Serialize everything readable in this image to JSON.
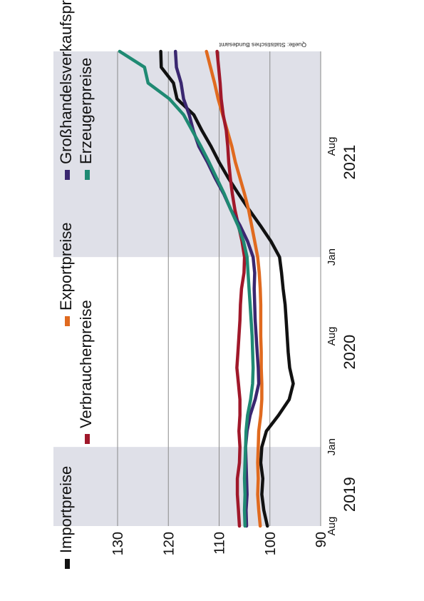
{
  "chart_data": {
    "type": "line",
    "source": "Quelle: Statistisches Bundesamt",
    "yticks": [
      90,
      100,
      110,
      120,
      130
    ],
    "ylim": [
      90,
      130
    ],
    "x_month_ticks": [
      {
        "label": "Aug",
        "month": 0
      },
      {
        "label": "Jan",
        "month": 5
      },
      {
        "label": "Aug",
        "month": 12
      },
      {
        "label": "Jan",
        "month": 17
      },
      {
        "label": "Aug",
        "month": 24
      }
    ],
    "x_year_labels": [
      {
        "label": "2019",
        "month": 2
      },
      {
        "label": "2020",
        "month": 11
      },
      {
        "label": "2021",
        "month": 23
      }
    ],
    "shaded_month_ranges": [
      [
        0,
        5
      ],
      [
        17,
        30
      ]
    ],
    "series": [
      {
        "name": "Importpreise",
        "color": "#111111",
        "points": [
          [
            0,
            100.5
          ],
          [
            1,
            101.2
          ],
          [
            2,
            101.6
          ],
          [
            3,
            101.4
          ],
          [
            4,
            101.8
          ],
          [
            5,
            101.6
          ],
          [
            6,
            100.7
          ],
          [
            7,
            98.3
          ],
          [
            8,
            96.2
          ],
          [
            9,
            95.4
          ],
          [
            10,
            96.1
          ],
          [
            11,
            96.4
          ],
          [
            12,
            96.6
          ],
          [
            13,
            96.8
          ],
          [
            14,
            97.0
          ],
          [
            15,
            97.4
          ],
          [
            16,
            97.7
          ],
          [
            17,
            98.1
          ],
          [
            18,
            99.8
          ],
          [
            19,
            101.9
          ],
          [
            20,
            104.1
          ],
          [
            21,
            106.2
          ],
          [
            22,
            108.2
          ],
          [
            23,
            110.0
          ],
          [
            24,
            111.6
          ],
          [
            25,
            113.4
          ],
          [
            26,
            115.0
          ],
          [
            27,
            118.3
          ],
          [
            28,
            119.0
          ],
          [
            29,
            121.4
          ],
          [
            30,
            121.5
          ]
        ]
      },
      {
        "name": "Exportpreise",
        "color": "#e06a1f",
        "points": [
          [
            0,
            101.9
          ],
          [
            1,
            102.2
          ],
          [
            2,
            102.4
          ],
          [
            3,
            102.3
          ],
          [
            4,
            102.4
          ],
          [
            5,
            102.3
          ],
          [
            6,
            102.2
          ],
          [
            7,
            101.8
          ],
          [
            8,
            101.6
          ],
          [
            9,
            101.6
          ],
          [
            10,
            101.7
          ],
          [
            11,
            101.7
          ],
          [
            12,
            101.8
          ],
          [
            13,
            101.8
          ],
          [
            14,
            101.8
          ],
          [
            15,
            101.9
          ],
          [
            16,
            102.1
          ],
          [
            17,
            102.4
          ],
          [
            18,
            103.0
          ],
          [
            19,
            103.6
          ],
          [
            20,
            104.2
          ],
          [
            21,
            105.0
          ],
          [
            22,
            105.9
          ],
          [
            23,
            106.8
          ],
          [
            24,
            107.5
          ],
          [
            25,
            108.4
          ],
          [
            26,
            109.3
          ],
          [
            27,
            110.2
          ],
          [
            28,
            110.9
          ],
          [
            29,
            111.7
          ],
          [
            30,
            112.5
          ]
        ]
      },
      {
        "name": "Verbraucherpreise",
        "color": "#a0182a",
        "points": [
          [
            0,
            106.0
          ],
          [
            1,
            106.2
          ],
          [
            2,
            106.4
          ],
          [
            3,
            106.4
          ],
          [
            4,
            106.0
          ],
          [
            5,
            105.9
          ],
          [
            6,
            106.1
          ],
          [
            7,
            105.9
          ],
          [
            8,
            105.9
          ],
          [
            9,
            106.2
          ],
          [
            10,
            106.5
          ],
          [
            11,
            106.3
          ],
          [
            12,
            106.1
          ],
          [
            13,
            105.9
          ],
          [
            14,
            105.8
          ],
          [
            15,
            105.6
          ],
          [
            16,
            105.1
          ],
          [
            17,
            105.0
          ],
          [
            18,
            105.5
          ],
          [
            19,
            106.2
          ],
          [
            20,
            106.9
          ],
          [
            21,
            107.4
          ],
          [
            22,
            107.8
          ],
          [
            23,
            108.1
          ],
          [
            24,
            108.3
          ],
          [
            25,
            108.6
          ],
          [
            26,
            109.2
          ],
          [
            27,
            109.6
          ],
          [
            28,
            109.8
          ],
          [
            29,
            110.1
          ],
          [
            30,
            110.4
          ]
        ]
      },
      {
        "name": "Großhandelsverkaufspreise",
        "color": "#3a2770",
        "points": [
          [
            0,
            104.6
          ],
          [
            1,
            104.7
          ],
          [
            2,
            104.5
          ],
          [
            3,
            104.6
          ],
          [
            4,
            104.7
          ],
          [
            5,
            104.8
          ],
          [
            6,
            104.5
          ],
          [
            7,
            103.9
          ],
          [
            8,
            102.9
          ],
          [
            9,
            102.2
          ],
          [
            10,
            102.3
          ],
          [
            11,
            102.5
          ],
          [
            12,
            102.7
          ],
          [
            13,
            102.9
          ],
          [
            14,
            103.0
          ],
          [
            15,
            103.1
          ],
          [
            16,
            103.0
          ],
          [
            17,
            103.3
          ],
          [
            18,
            104.4
          ],
          [
            19,
            105.9
          ],
          [
            20,
            107.7
          ],
          [
            21,
            109.1
          ],
          [
            22,
            110.8
          ],
          [
            23,
            112.3
          ],
          [
            24,
            114.0
          ],
          [
            25,
            115.1
          ],
          [
            26,
            115.9
          ],
          [
            27,
            117.0
          ],
          [
            28,
            117.5
          ],
          [
            29,
            118.4
          ],
          [
            30,
            118.6
          ]
        ]
      },
      {
        "name": "Erzeugerpreise",
        "color": "#1f8a73",
        "points": [
          [
            0,
            104.9
          ],
          [
            1,
            105.0
          ],
          [
            2,
            104.9
          ],
          [
            3,
            105.0
          ],
          [
            4,
            104.9
          ],
          [
            5,
            104.8
          ],
          [
            6,
            104.7
          ],
          [
            7,
            104.4
          ],
          [
            8,
            103.8
          ],
          [
            9,
            103.4
          ],
          [
            10,
            103.3
          ],
          [
            11,
            103.4
          ],
          [
            12,
            103.5
          ],
          [
            13,
            103.7
          ],
          [
            14,
            103.9
          ],
          [
            15,
            104.1
          ],
          [
            16,
            104.3
          ],
          [
            17,
            104.5
          ],
          [
            18,
            105.2
          ],
          [
            19,
            106.3
          ],
          [
            20,
            107.7
          ],
          [
            21,
            109.0
          ],
          [
            22,
            110.5
          ],
          [
            23,
            112.0
          ],
          [
            24,
            113.6
          ],
          [
            25,
            115.3
          ],
          [
            26,
            117.0
          ],
          [
            27,
            119.8
          ],
          [
            28,
            124.0
          ],
          [
            29,
            124.7
          ],
          [
            30,
            129.6
          ]
        ]
      }
    ]
  }
}
